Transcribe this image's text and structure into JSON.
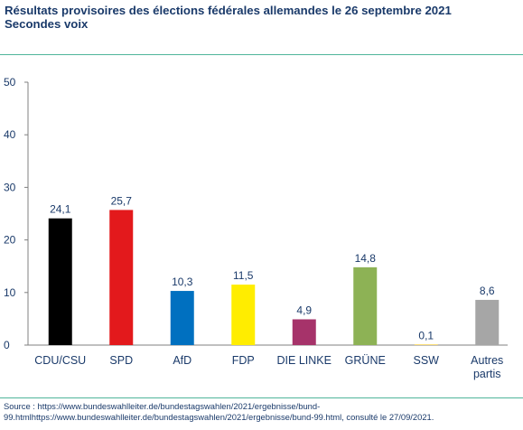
{
  "title": "Résultats  provisoires  des  élections fédérales allemandes le 26 septembre 2021",
  "subtitle": "Secondes voix",
  "source_line1": "Source : https://www.bundeswahlleiter.de/bundestagswahlen/2021/ergebnisse/bund-",
  "source_line2": "99.htmlhttps://www.bundeswahlleiter.de/bundestagswahlen/2021/ergebnisse/bund-99.html, consulté le 27/09/2021.",
  "chart_data": {
    "type": "bar",
    "categories": [
      "CDU/CSU",
      "SPD",
      "AfD",
      "FDP",
      "DIE LINKE",
      "GRÜNE",
      "SSW",
      "Autres partis"
    ],
    "category_lines": [
      [
        "CDU/CSU"
      ],
      [
        "SPD"
      ],
      [
        "AfD"
      ],
      [
        "FDP"
      ],
      [
        "DIE LINKE"
      ],
      [
        "GRÜNE"
      ],
      [
        "SSW"
      ],
      [
        "Autres",
        "partis"
      ]
    ],
    "values": [
      24.1,
      25.7,
      10.3,
      11.5,
      4.9,
      14.8,
      0.1,
      8.6
    ],
    "value_labels": [
      "24,1",
      "25,7",
      "10,3",
      "11,5",
      "4,9",
      "14,8",
      "0,1",
      "8,6"
    ],
    "colors": [
      "#000000",
      "#e3191c",
      "#0070c0",
      "#ffed00",
      "#a6336a",
      "#8db255",
      "#f5c518",
      "#a6a6a6"
    ],
    "yticks": [
      0,
      10,
      20,
      30,
      40,
      50
    ],
    "ylim": [
      0,
      50
    ],
    "grid": false,
    "legend": false
  }
}
